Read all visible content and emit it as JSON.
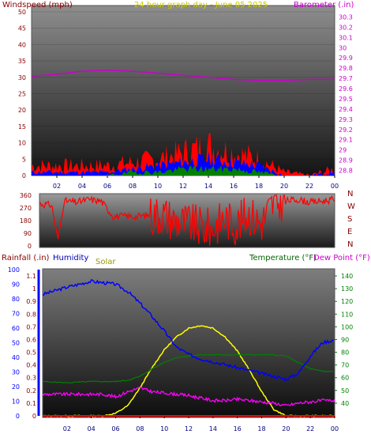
{
  "title": "24 hour graph day - June 05 2025",
  "colors": {
    "wind_gust": "#ff0000",
    "wind_avg": "#0000ff",
    "wind_low": "#008000",
    "barometer": "#cc00cc",
    "direction": "#ff0000",
    "humidity": "#0000ff",
    "solar": "#ffff00",
    "temperature": "#008000",
    "dewpoint": "#ff00ff",
    "rainfall": "#ff0000",
    "left_axis": "#880000",
    "right_axis_top": "#cc00cc",
    "right_axis_bottom": "#008000",
    "title_color": "#cccc00",
    "solar_label_color": "#999900",
    "humidity_label_color": "#0000bb",
    "temperature_label_color": "#006600"
  },
  "x_ticks": [
    "02",
    "04",
    "06",
    "08",
    "10",
    "12",
    "14",
    "16",
    "18",
    "20",
    "22",
    "00"
  ],
  "compass": [
    "N",
    "W",
    "S",
    "E",
    "N"
  ],
  "chart_data": [
    {
      "type": "line",
      "name": "wind-barometer",
      "title": "24 hour graph day - June 05 2025",
      "left_label": "Windspeed (mph)",
      "right_label": "Barometer (.in)",
      "left_ticks": [
        "50",
        "45",
        "40",
        "35",
        "30",
        "25",
        "20",
        "15",
        "10",
        "5",
        "0"
      ],
      "right_ticks": [
        "30.3",
        "30.2",
        "30.1",
        "30",
        "29.9",
        "29.8",
        "29.7",
        "29.6",
        "29.5",
        "29.4",
        "29.3",
        "29.2",
        "29.1",
        "29",
        "28.9",
        "28.8"
      ],
      "ylim_left": [
        0,
        50
      ],
      "ylim_right": [
        28.75,
        30.35
      ],
      "x": [
        0,
        2,
        4,
        6,
        8,
        10,
        12,
        14,
        16,
        18,
        20,
        22,
        24
      ],
      "series": [
        {
          "name": "gust",
          "values": [
            3,
            3,
            3,
            3,
            4,
            5,
            7,
            9,
            7,
            5,
            1,
            0,
            2
          ]
        },
        {
          "name": "average",
          "values": [
            1,
            1,
            1,
            1,
            2,
            3,
            4,
            5,
            4,
            3,
            0,
            0,
            1
          ]
        },
        {
          "name": "low",
          "values": [
            0,
            0,
            0,
            0,
            1,
            1,
            2,
            2,
            2,
            1,
            0,
            0,
            0
          ]
        },
        {
          "name": "barometer",
          "values": [
            29.72,
            29.74,
            29.77,
            29.78,
            29.77,
            29.75,
            29.73,
            29.71,
            29.69,
            29.68,
            29.68,
            29.69,
            29.69
          ]
        }
      ]
    },
    {
      "type": "scatter",
      "name": "wind-direction",
      "y_ticks": [
        "360",
        "270",
        "180",
        "90",
        "0"
      ],
      "ylim": [
        0,
        360
      ],
      "x": [
        0,
        1,
        1.5,
        2,
        3,
        4,
        5,
        6,
        7,
        8,
        9,
        10,
        11,
        12,
        13,
        14,
        15,
        16,
        17,
        18,
        19,
        20,
        21,
        22,
        23,
        24
      ],
      "values": [
        300,
        290,
        40,
        320,
        310,
        330,
        320,
        210,
        210,
        210,
        220,
        230,
        180,
        160,
        140,
        120,
        200,
        150,
        230,
        160,
        300,
        320,
        330,
        310,
        320,
        330
      ]
    },
    {
      "type": "line",
      "name": "rain-humidity-solar-temperature",
      "labels": {
        "rainfall": "Rainfall (.in)",
        "humidity": "Humidity",
        "solar": "Solar",
        "temperature": "Temperature (°F)",
        "dewpoint": "Dew Point (°F)"
      },
      "rain_ticks": [
        "1.1",
        "1",
        "0.9",
        "0.8",
        "0.7",
        "0.6",
        "0.5",
        "0.4",
        "0.3",
        "0.2",
        "0.1",
        "0"
      ],
      "humidity_ticks": [
        "100",
        "90",
        "80",
        "70",
        "60",
        "50",
        "40",
        "30",
        "20",
        "10",
        "0"
      ],
      "temp_ticks": [
        "140",
        "130",
        "120",
        "110",
        "100",
        "90",
        "80",
        "70",
        "60",
        "50",
        "40"
      ],
      "ylim_rain": [
        0,
        1.15
      ],
      "ylim_humidity": [
        0,
        100
      ],
      "ylim_temp": [
        30,
        145
      ],
      "x": [
        0,
        2,
        4,
        5,
        6,
        7,
        8,
        9,
        10,
        11,
        12,
        13,
        14,
        15,
        16,
        17,
        18,
        19,
        20,
        21,
        22,
        23,
        24
      ],
      "series": [
        {
          "name": "humidity",
          "values": [
            83,
            88,
            92,
            91,
            90,
            85,
            77,
            68,
            58,
            47,
            42,
            39,
            37,
            35,
            33,
            31,
            29,
            27,
            25,
            29,
            41,
            50,
            52
          ]
        },
        {
          "name": "temperature",
          "values": [
            57,
            56,
            57,
            57,
            57,
            58,
            61,
            67,
            72,
            76,
            77,
            78,
            78,
            78,
            78,
            78,
            78,
            78,
            77,
            72,
            67,
            65,
            65
          ]
        },
        {
          "name": "dewpoint",
          "values": [
            47,
            47,
            47,
            47,
            45,
            49,
            52,
            49,
            48,
            47,
            46,
            44,
            42,
            42,
            43,
            42,
            41,
            40,
            38,
            40,
            41,
            42,
            42
          ]
        },
        {
          "name": "solar",
          "values": [
            0,
            0,
            0,
            0,
            0.02,
            0.08,
            0.22,
            0.38,
            0.52,
            0.62,
            0.69,
            0.71,
            0.69,
            0.62,
            0.51,
            0.36,
            0.19,
            0.05,
            0,
            0,
            0,
            0,
            0
          ]
        },
        {
          "name": "rainfall",
          "values": [
            0,
            0,
            0,
            0,
            0,
            0,
            0,
            0,
            0,
            0,
            0,
            0,
            0,
            0,
            0,
            0,
            0,
            0,
            0,
            0,
            0,
            0,
            0
          ]
        }
      ]
    }
  ]
}
